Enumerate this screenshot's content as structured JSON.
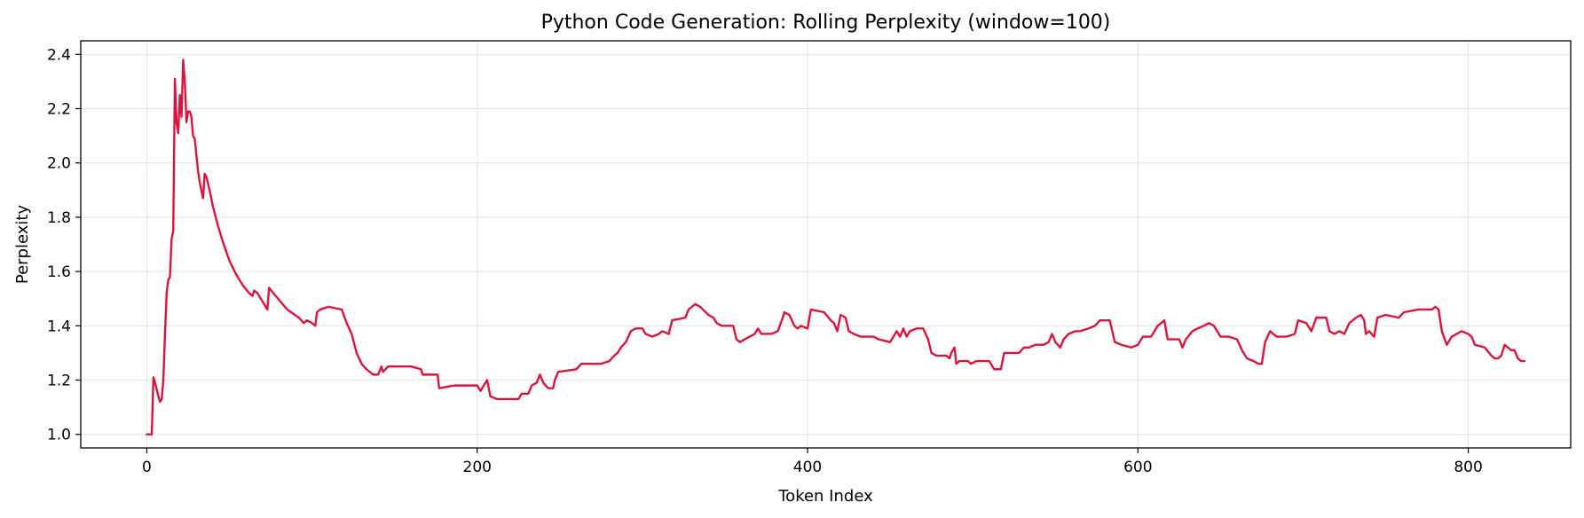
{
  "chart_data": {
    "type": "line",
    "title": "Python Code Generation: Rolling Perplexity (window=100)",
    "xlabel": "Token Index",
    "ylabel": "Perplexity",
    "xlim": [
      -40,
      862
    ],
    "ylim": [
      0.95,
      2.45
    ],
    "xticks": [
      0,
      200,
      400,
      600,
      800
    ],
    "yticks": [
      1.0,
      1.2,
      1.4,
      1.6,
      1.8,
      2.0,
      2.2,
      2.4
    ],
    "grid": true,
    "series": [
      {
        "color": "#dc143c",
        "points": [
          [
            0,
            1.0
          ],
          [
            2,
            1.0
          ],
          [
            3,
            1.0
          ],
          [
            4,
            1.21
          ],
          [
            5,
            1.19
          ],
          [
            7,
            1.14
          ],
          [
            8,
            1.12
          ],
          [
            9,
            1.13
          ],
          [
            10,
            1.2
          ],
          [
            11,
            1.37
          ],
          [
            12,
            1.52
          ],
          [
            13,
            1.57
          ],
          [
            14,
            1.58
          ],
          [
            15,
            1.72
          ],
          [
            16,
            1.75
          ],
          [
            17,
            2.31
          ],
          [
            18,
            2.15
          ],
          [
            19,
            2.11
          ],
          [
            20,
            2.25
          ],
          [
            21,
            2.17
          ],
          [
            22,
            2.38
          ],
          [
            23,
            2.3
          ],
          [
            24,
            2.15
          ],
          [
            25,
            2.19
          ],
          [
            26,
            2.19
          ],
          [
            27,
            2.17
          ],
          [
            28,
            2.1
          ],
          [
            29,
            2.09
          ],
          [
            30,
            2.03
          ],
          [
            31,
            1.97
          ],
          [
            32,
            1.93
          ],
          [
            33,
            1.9
          ],
          [
            34,
            1.87
          ],
          [
            35,
            1.96
          ],
          [
            36,
            1.95
          ],
          [
            38,
            1.9
          ],
          [
            40,
            1.84
          ],
          [
            43,
            1.77
          ],
          [
            46,
            1.71
          ],
          [
            50,
            1.64
          ],
          [
            54,
            1.59
          ],
          [
            58,
            1.55
          ],
          [
            62,
            1.52
          ],
          [
            64,
            1.51
          ],
          [
            65,
            1.53
          ],
          [
            67,
            1.52
          ],
          [
            70,
            1.49
          ],
          [
            73,
            1.46
          ],
          [
            74,
            1.54
          ],
          [
            78,
            1.51
          ],
          [
            85,
            1.46
          ],
          [
            92,
            1.43
          ],
          [
            95,
            1.41
          ],
          [
            97,
            1.42
          ],
          [
            100,
            1.41
          ],
          [
            102,
            1.4
          ],
          [
            103,
            1.45
          ],
          [
            105,
            1.46
          ],
          [
            110,
            1.47
          ],
          [
            118,
            1.46
          ],
          [
            121,
            1.41
          ],
          [
            124,
            1.37
          ],
          [
            127,
            1.3
          ],
          [
            130,
            1.26
          ],
          [
            133,
            1.24
          ],
          [
            137,
            1.22
          ],
          [
            140,
            1.22
          ],
          [
            142,
            1.25
          ],
          [
            143,
            1.23
          ],
          [
            146,
            1.25
          ],
          [
            160,
            1.25
          ],
          [
            166,
            1.24
          ],
          [
            167,
            1.22
          ],
          [
            176,
            1.22
          ],
          [
            177,
            1.17
          ],
          [
            186,
            1.18
          ],
          [
            200,
            1.18
          ],
          [
            202,
            1.16
          ],
          [
            205,
            1.19
          ],
          [
            206,
            1.2
          ],
          [
            208,
            1.14
          ],
          [
            212,
            1.13
          ],
          [
            220,
            1.13
          ],
          [
            225,
            1.13
          ],
          [
            227,
            1.15
          ],
          [
            231,
            1.15
          ],
          [
            233,
            1.18
          ],
          [
            236,
            1.19
          ],
          [
            238,
            1.22
          ],
          [
            240,
            1.19
          ],
          [
            243,
            1.17
          ],
          [
            246,
            1.17
          ],
          [
            247,
            1.2
          ],
          [
            249,
            1.23
          ],
          [
            260,
            1.24
          ],
          [
            263,
            1.26
          ],
          [
            275,
            1.26
          ],
          [
            280,
            1.27
          ],
          [
            283,
            1.29
          ],
          [
            285,
            1.3
          ],
          [
            287,
            1.32
          ],
          [
            290,
            1.34
          ],
          [
            293,
            1.38
          ],
          [
            296,
            1.39
          ],
          [
            300,
            1.39
          ],
          [
            302,
            1.37
          ],
          [
            306,
            1.36
          ],
          [
            310,
            1.37
          ],
          [
            312,
            1.38
          ],
          [
            316,
            1.37
          ],
          [
            318,
            1.42
          ],
          [
            326,
            1.43
          ],
          [
            328,
            1.46
          ],
          [
            330,
            1.47
          ],
          [
            332,
            1.48
          ],
          [
            335,
            1.47
          ],
          [
            340,
            1.44
          ],
          [
            343,
            1.43
          ],
          [
            345,
            1.41
          ],
          [
            348,
            1.4
          ],
          [
            355,
            1.4
          ],
          [
            357,
            1.35
          ],
          [
            359,
            1.34
          ],
          [
            362,
            1.35
          ],
          [
            365,
            1.36
          ],
          [
            368,
            1.37
          ],
          [
            370,
            1.39
          ],
          [
            372,
            1.37
          ],
          [
            378,
            1.37
          ],
          [
            382,
            1.38
          ],
          [
            385,
            1.43
          ],
          [
            386,
            1.45
          ],
          [
            389,
            1.44
          ],
          [
            392,
            1.4
          ],
          [
            394,
            1.39
          ],
          [
            396,
            1.4
          ],
          [
            400,
            1.39
          ],
          [
            402,
            1.46
          ],
          [
            410,
            1.45
          ],
          [
            414,
            1.42
          ],
          [
            416,
            1.41
          ],
          [
            418,
            1.38
          ],
          [
            420,
            1.44
          ],
          [
            423,
            1.43
          ],
          [
            425,
            1.38
          ],
          [
            428,
            1.37
          ],
          [
            432,
            1.36
          ],
          [
            440,
            1.36
          ],
          [
            443,
            1.35
          ],
          [
            450,
            1.34
          ],
          [
            452,
            1.36
          ],
          [
            454,
            1.38
          ],
          [
            456,
            1.36
          ],
          [
            458,
            1.39
          ],
          [
            460,
            1.36
          ],
          [
            462,
            1.38
          ],
          [
            466,
            1.39
          ],
          [
            470,
            1.39
          ],
          [
            473,
            1.35
          ],
          [
            475,
            1.3
          ],
          [
            478,
            1.29
          ],
          [
            484,
            1.29
          ],
          [
            486,
            1.28
          ],
          [
            487,
            1.3
          ],
          [
            489,
            1.32
          ],
          [
            490,
            1.26
          ],
          [
            492,
            1.27
          ],
          [
            497,
            1.27
          ],
          [
            499,
            1.26
          ],
          [
            502,
            1.27
          ],
          [
            510,
            1.27
          ],
          [
            513,
            1.24
          ],
          [
            517,
            1.24
          ],
          [
            519,
            1.3
          ],
          [
            528,
            1.3
          ],
          [
            531,
            1.32
          ],
          [
            534,
            1.32
          ],
          [
            538,
            1.33
          ],
          [
            543,
            1.33
          ],
          [
            546,
            1.34
          ],
          [
            548,
            1.37
          ],
          [
            550,
            1.34
          ],
          [
            553,
            1.32
          ],
          [
            555,
            1.35
          ],
          [
            558,
            1.37
          ],
          [
            562,
            1.38
          ],
          [
            565,
            1.38
          ],
          [
            570,
            1.39
          ],
          [
            574,
            1.4
          ],
          [
            577,
            1.42
          ],
          [
            583,
            1.42
          ],
          [
            586,
            1.34
          ],
          [
            590,
            1.33
          ],
          [
            596,
            1.32
          ],
          [
            600,
            1.33
          ],
          [
            603,
            1.36
          ],
          [
            608,
            1.36
          ],
          [
            612,
            1.4
          ],
          [
            616,
            1.42
          ],
          [
            618,
            1.35
          ],
          [
            625,
            1.35
          ],
          [
            627,
            1.32
          ],
          [
            629,
            1.35
          ],
          [
            633,
            1.38
          ],
          [
            636,
            1.39
          ],
          [
            640,
            1.4
          ],
          [
            643,
            1.41
          ],
          [
            646,
            1.4
          ],
          [
            650,
            1.36
          ],
          [
            655,
            1.36
          ],
          [
            660,
            1.35
          ],
          [
            663,
            1.31
          ],
          [
            666,
            1.28
          ],
          [
            670,
            1.27
          ],
          [
            673,
            1.26
          ],
          [
            675,
            1.26
          ],
          [
            677,
            1.34
          ],
          [
            680,
            1.38
          ],
          [
            684,
            1.36
          ],
          [
            690,
            1.36
          ],
          [
            695,
            1.37
          ],
          [
            697,
            1.42
          ],
          [
            702,
            1.41
          ],
          [
            705,
            1.38
          ],
          [
            708,
            1.43
          ],
          [
            714,
            1.43
          ],
          [
            716,
            1.38
          ],
          [
            719,
            1.37
          ],
          [
            722,
            1.38
          ],
          [
            725,
            1.37
          ],
          [
            728,
            1.41
          ],
          [
            732,
            1.43
          ],
          [
            735,
            1.44
          ],
          [
            737,
            1.42
          ],
          [
            738,
            1.37
          ],
          [
            740,
            1.38
          ],
          [
            743,
            1.36
          ],
          [
            745,
            1.43
          ],
          [
            750,
            1.44
          ],
          [
            758,
            1.43
          ],
          [
            761,
            1.45
          ],
          [
            770,
            1.46
          ],
          [
            778,
            1.46
          ],
          [
            780,
            1.47
          ],
          [
            782,
            1.46
          ],
          [
            784,
            1.38
          ],
          [
            787,
            1.33
          ],
          [
            790,
            1.36
          ],
          [
            793,
            1.37
          ],
          [
            796,
            1.38
          ],
          [
            800,
            1.37
          ],
          [
            802,
            1.36
          ],
          [
            804,
            1.33
          ],
          [
            810,
            1.32
          ],
          [
            814,
            1.29
          ],
          [
            816,
            1.28
          ],
          [
            818,
            1.28
          ],
          [
            820,
            1.29
          ],
          [
            822,
            1.33
          ],
          [
            824,
            1.32
          ],
          [
            826,
            1.31
          ],
          [
            828,
            1.31
          ],
          [
            830,
            1.28
          ],
          [
            832,
            1.27
          ],
          [
            834,
            1.27
          ]
        ]
      }
    ]
  }
}
